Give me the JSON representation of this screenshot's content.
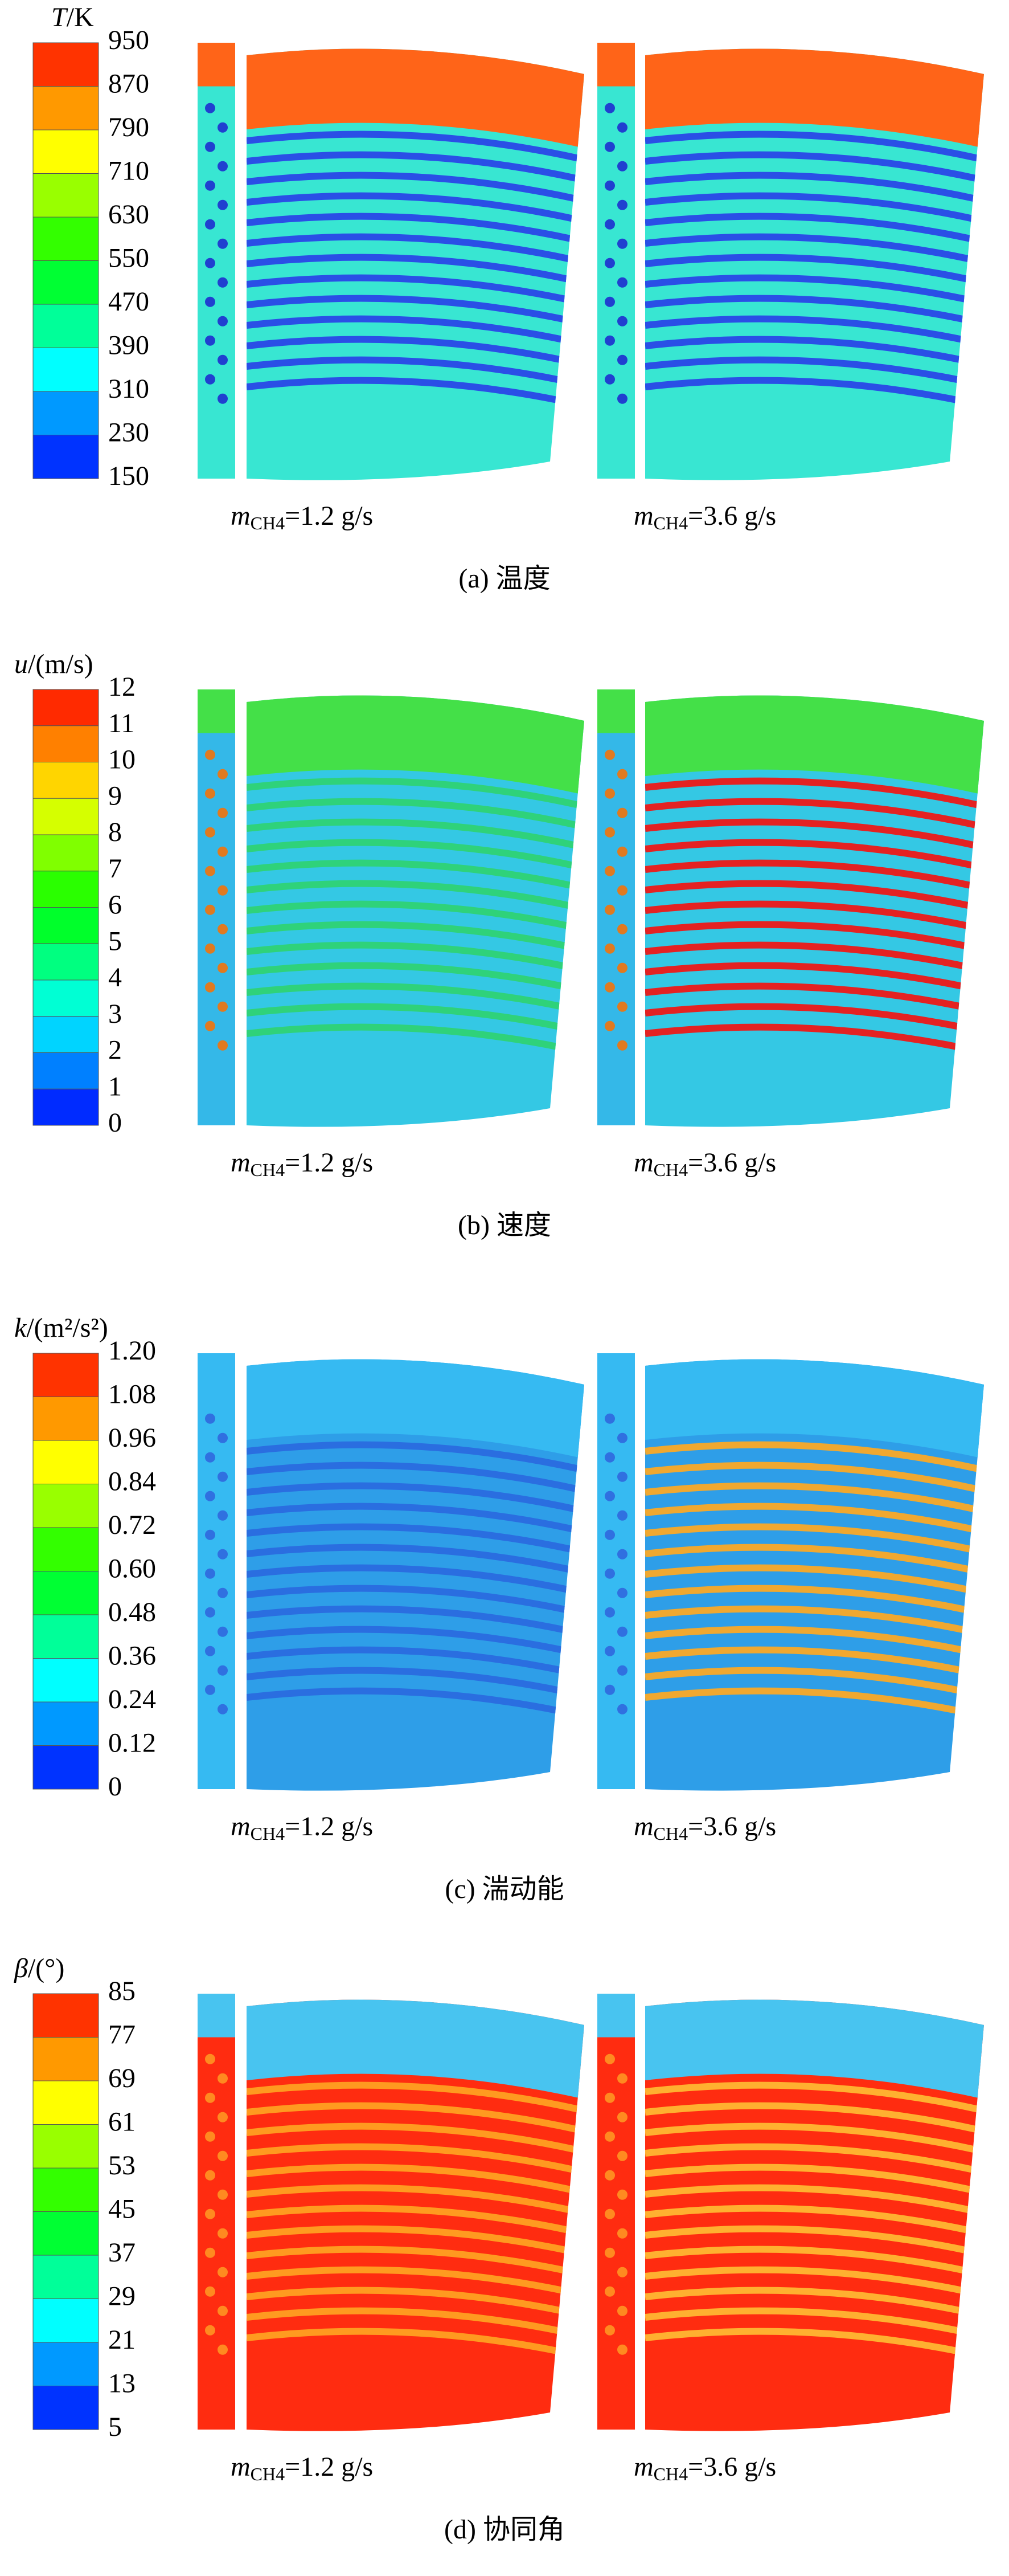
{
  "panels": [
    {
      "colorbar": {
        "symbol": "T",
        "unit": "/K",
        "labels": [
          "950",
          "870",
          "790",
          "710",
          "630",
          "550",
          "470",
          "390",
          "310",
          "230",
          "150"
        ]
      },
      "cases": [
        {
          "symbol": "m",
          "subscript": "CH4",
          "text": "=1.2 g/s"
        },
        {
          "symbol": "m",
          "subscript": "CH4",
          "text": "=3.6 g/s"
        }
      ],
      "caption": "(a) 温度"
    },
    {
      "colorbar": {
        "symbol": "u",
        "unit": "/(m/s)",
        "labels": [
          "12",
          "11",
          "10",
          "9",
          "8",
          "7",
          "6",
          "5",
          "4",
          "3",
          "2",
          "1",
          "0"
        ]
      },
      "cases": [
        {
          "symbol": "m",
          "subscript": "CH4",
          "text": "=1.2 g/s"
        },
        {
          "symbol": "m",
          "subscript": "CH4",
          "text": "=3.6 g/s"
        }
      ],
      "caption": "(b) 速度"
    },
    {
      "colorbar": {
        "symbol": "k",
        "unit": "/(m²/s²)",
        "labels": [
          "1.20",
          "1.08",
          "0.96",
          "0.84",
          "0.72",
          "0.60",
          "0.48",
          "0.36",
          "0.24",
          "0.12",
          "0"
        ]
      },
      "cases": [
        {
          "symbol": "m",
          "subscript": "CH4",
          "text": "=1.2 g/s"
        },
        {
          "symbol": "m",
          "subscript": "CH4",
          "text": "=3.6 g/s"
        }
      ],
      "caption": "(c) 湍动能"
    },
    {
      "colorbar": {
        "symbol": "β",
        "unit": "/(°)",
        "labels": [
          "85",
          "77",
          "69",
          "61",
          "53",
          "45",
          "37",
          "29",
          "21",
          "13",
          "5"
        ]
      },
      "cases": [
        {
          "symbol": "m",
          "subscript": "CH4",
          "text": "=1.2 g/s"
        },
        {
          "symbol": "m",
          "subscript": "CH4",
          "text": "=3.6 g/s"
        }
      ],
      "caption": "(d) 协同角"
    }
  ]
}
